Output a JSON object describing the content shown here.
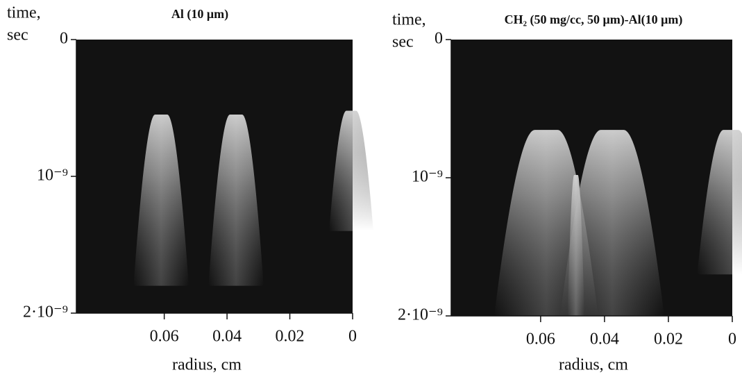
{
  "chart_data": [
    {
      "type": "image",
      "title": "Al (10 μm)",
      "x_label": "radius, cm",
      "y_label": [
        "time,",
        "sec"
      ],
      "xlim": [
        0.088,
        0
      ],
      "xticks": [
        0.06,
        0.04,
        0.02,
        0
      ],
      "ylim": [
        0,
        2e-09
      ],
      "yticks": [
        0,
        {
          "value": 1e-09,
          "label": "10⁻⁹"
        },
        {
          "value": 2e-09,
          "label": "2·10⁻⁹"
        }
      ]
    },
    {
      "type": "image",
      "title": "CH₂ (50 mg/cc, 50 μm)-Al(10 μm)",
      "x_label": "radius, cm",
      "y_label": [
        "time,",
        "sec"
      ],
      "xlim": [
        0.088,
        0
      ],
      "xticks": [
        0.06,
        0.04,
        0.02,
        0
      ],
      "ylim": [
        0,
        2e-09
      ],
      "yticks": [
        0,
        {
          "value": 1e-09,
          "label": "10⁻⁹"
        },
        {
          "value": 2e-09,
          "label": "2·10⁻⁹"
        }
      ]
    }
  ]
}
